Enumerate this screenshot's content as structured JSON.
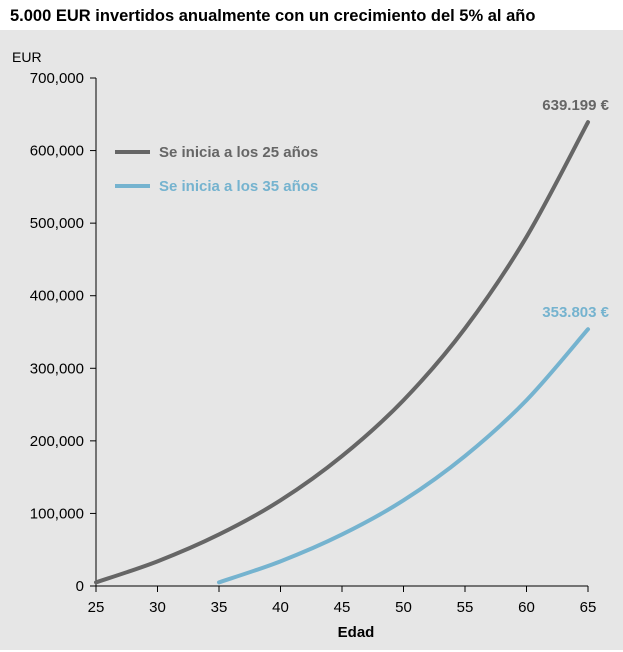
{
  "chart_data": {
    "type": "line",
    "title": "5.000 EUR invertidos anualmente con un crecimiento del 5% al año",
    "xlabel": "Edad",
    "ylabel": "EUR",
    "xlim": [
      25,
      65
    ],
    "ylim": [
      0,
      700000
    ],
    "x_ticks": [
      25,
      30,
      35,
      40,
      45,
      50,
      55,
      60,
      65
    ],
    "x_tick_labels": [
      "25",
      "30",
      "35",
      "40",
      "45",
      "50",
      "55",
      "60",
      "65"
    ],
    "y_ticks": [
      0,
      100000,
      200000,
      300000,
      400000,
      500000,
      600000,
      700000
    ],
    "y_tick_labels": [
      "0",
      "100,000",
      "200,000",
      "300,000",
      "400,000",
      "500,000",
      "600,000",
      "700,000"
    ],
    "grid": false,
    "legend_position": "top-left",
    "background_color": "#e6e6e6",
    "series": [
      {
        "name": "Se inicia a los 25 años",
        "color": "#666666",
        "end_label": "639.199 €",
        "x": [
          25,
          30,
          35,
          40,
          45,
          50,
          55,
          60,
          65
        ],
        "y": [
          5000,
          34000,
          71000,
          118000,
          179000,
          256000,
          355000,
          481000,
          639199
        ]
      },
      {
        "name": "Se inicia a los 35 años",
        "color": "#75b3cf",
        "end_label": "353.803 €",
        "x": [
          35,
          40,
          45,
          50,
          55,
          60,
          65
        ],
        "y": [
          5000,
          34000,
          71000,
          118000,
          179000,
          256000,
          353803
        ]
      }
    ]
  }
}
